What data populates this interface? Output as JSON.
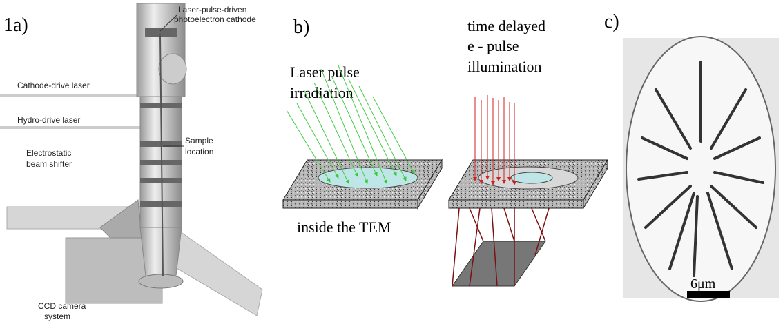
{
  "panel_a": {
    "label": "1a)",
    "callouts": [
      {
        "lines": [
          "Laser-pulse-driven",
          "photoelectron cathode"
        ]
      },
      {
        "lines": [
          "Cathode-drive laser"
        ]
      },
      {
        "lines": [
          "Hydro-drive laser"
        ]
      },
      {
        "lines": [
          "Electrostatic",
          "beam shifter"
        ]
      },
      {
        "lines": [
          "Sample",
          "location"
        ]
      },
      {
        "lines": [
          "CCD camera",
          "system"
        ]
      }
    ]
  },
  "panel_b": {
    "label": "b)",
    "left_caption": [
      "Laser pulse",
      "irradiation"
    ],
    "right_caption": [
      "time delayed",
      "e - pulse",
      "illumination"
    ],
    "bottom_caption": "inside the TEM"
  },
  "panel_c": {
    "label": "c)",
    "scale_bar": "6μm"
  }
}
